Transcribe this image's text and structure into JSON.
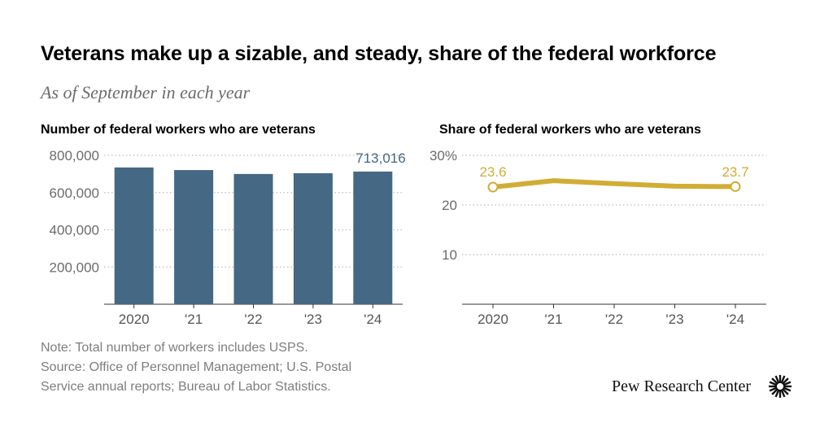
{
  "title": "Veterans make up a sizable, and steady, share of the federal workforce",
  "subtitle": "As of September in each year",
  "colors": {
    "bar": "#456884",
    "line": "#d1ad35",
    "grid": "#bdbdbd",
    "tick": "#6b6b6b",
    "note": "#7d7d7d",
    "bar_label": "#456884"
  },
  "chart_data": [
    {
      "type": "bar",
      "title": "Number of federal workers who are veterans",
      "categories": [
        "2020",
        "'21",
        "'22",
        "'23",
        "'24"
      ],
      "values": [
        735000,
        721000,
        700000,
        704000,
        713016
      ],
      "ylim": [
        0,
        800000
      ],
      "yticks": [
        200000,
        400000,
        600000,
        800000
      ],
      "ytick_labels": [
        "200,000",
        "400,000",
        "600,000",
        "800,000"
      ],
      "data_labels": [
        "",
        "",
        "",
        "",
        "713,016"
      ],
      "grid": true
    },
    {
      "type": "line",
      "title": "Share of federal workers who are veterans",
      "categories": [
        "2020",
        "'21",
        "'22",
        "'23",
        "'24"
      ],
      "values": [
        23.6,
        24.9,
        24.3,
        23.8,
        23.7
      ],
      "ylim": [
        0,
        30
      ],
      "yticks": [
        10,
        20,
        30
      ],
      "ytick_labels": [
        "10",
        "20",
        "30%"
      ],
      "data_labels": [
        "23.6",
        "",
        "",
        "",
        "23.7"
      ],
      "grid": true
    }
  ],
  "notes": [
    "Note: Total number of workers includes USPS.",
    "Source: Office of Personnel Management; U.S. Postal",
    "Service annual reports; Bureau of Labor Statistics."
  ],
  "brand": "Pew Research Center",
  "logo_icon": "pew-sunburst-icon"
}
